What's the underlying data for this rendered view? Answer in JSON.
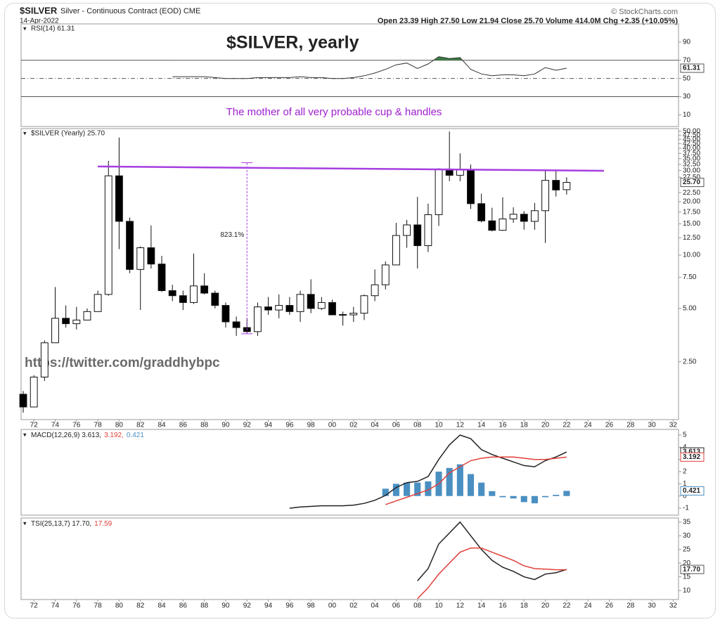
{
  "header": {
    "symbol": "$SILVER",
    "name": "Silver - Continuous Contract (EOD) CME",
    "date": "14-Apr-2022",
    "quote": "Open 23.39  High 27.50  Low 21.94  Close 25.70  Volume 414.0M  Chg +2.35 (+10.05%)",
    "copyright": "© StockCharts.com"
  },
  "chart_data": [
    {
      "type": "rsi",
      "title": "$SILVER, yearly",
      "subtitle": "The mother of all very probable cup & handles",
      "legend": "RSI(14) 61.31",
      "ylim": [
        -2.8,
        110
      ],
      "yticks": [
        10,
        30,
        50,
        70,
        90
      ],
      "levels": [
        70,
        50,
        30
      ],
      "fill_color": "#3a7d44",
      "x": [
        1985,
        1986,
        1987,
        1988,
        1989,
        1990,
        1991,
        1992,
        1993,
        1994,
        1995,
        1996,
        1997,
        1998,
        1999,
        2000,
        2001,
        2002,
        2003,
        2004,
        2005,
        2006,
        2007,
        2008,
        2009,
        2010,
        2011,
        2012,
        2013,
        2014,
        2015,
        2016,
        2017,
        2018,
        2019,
        2020,
        2021,
        2022
      ],
      "series": [
        {
          "color": "#333333",
          "values": [
            52,
            52,
            52,
            52,
            51,
            50,
            50,
            50,
            51,
            51,
            51,
            51,
            52,
            51,
            51,
            50,
            50,
            51,
            53,
            56,
            60,
            65,
            67,
            61,
            66,
            74,
            72,
            73,
            60,
            55,
            53,
            54,
            54,
            53,
            55,
            62,
            59,
            61.31
          ]
        }
      ]
    },
    {
      "type": "candlestick",
      "legend": "$SILVER (Yearly) 25.70",
      "log_scale": true,
      "last_label": "25.70",
      "ylim": [
        1.18,
        51.7
      ],
      "xlim": [
        1970.8,
        2032.5
      ],
      "yticks": [
        {
          "value": 2.5,
          "label": "2.50"
        },
        {
          "value": 5,
          "label": "5.00"
        },
        {
          "value": 7.5,
          "label": "7.50"
        },
        {
          "value": 10,
          "label": "10.00"
        },
        {
          "value": 12.5,
          "label": "12.50"
        },
        {
          "value": 15,
          "label": "15.00"
        },
        {
          "value": 17.5,
          "label": "17.50"
        },
        {
          "value": 20,
          "label": "20.00"
        },
        {
          "value": 22.5,
          "label": "22.50"
        },
        {
          "value": 27.5,
          "label": "27.50"
        },
        {
          "value": 30,
          "label": "30.00"
        },
        {
          "value": 32.5,
          "label": "32.50"
        },
        {
          "value": 35,
          "label": "35.00"
        },
        {
          "value": 37.5,
          "label": "37.50"
        },
        {
          "value": 40,
          "label": "40.00"
        },
        {
          "value": 42.5,
          "label": "42.50"
        },
        {
          "value": 45,
          "label": "45.00"
        },
        {
          "value": 47.5,
          "label": "47.50"
        },
        {
          "value": 50,
          "label": "50.00"
        }
      ],
      "xticks": [
        {
          "value": 1972,
          "label": "72"
        },
        {
          "value": 1974,
          "label": "74"
        },
        {
          "value": 1976,
          "label": "76"
        },
        {
          "value": 1978,
          "label": "78"
        },
        {
          "value": 1980,
          "label": "80"
        },
        {
          "value": 1982,
          "label": "82"
        },
        {
          "value": 1984,
          "label": "84"
        },
        {
          "value": 1986,
          "label": "86"
        },
        {
          "value": 1988,
          "label": "88"
        },
        {
          "value": 1990,
          "label": "90"
        },
        {
          "value": 1992,
          "label": "92"
        },
        {
          "value": 1994,
          "label": "94"
        },
        {
          "value": 1996,
          "label": "96"
        },
        {
          "value": 1998,
          "label": "98"
        },
        {
          "value": 2000,
          "label": "00"
        },
        {
          "value": 2002,
          "label": "02"
        },
        {
          "value": 2004,
          "label": "04"
        },
        {
          "value": 2006,
          "label": "06"
        },
        {
          "value": 2008,
          "label": "08"
        },
        {
          "value": 2010,
          "label": "10"
        },
        {
          "value": 2012,
          "label": "12"
        },
        {
          "value": 2014,
          "label": "14"
        },
        {
          "value": 2016,
          "label": "16"
        },
        {
          "value": 2018,
          "label": "18"
        },
        {
          "value": 2020,
          "label": "20"
        },
        {
          "value": 2022,
          "label": "22"
        },
        {
          "value": 2024,
          "label": "24"
        },
        {
          "value": 2026,
          "label": "26"
        },
        {
          "value": 2028,
          "label": "28"
        },
        {
          "value": 2030,
          "label": "30"
        },
        {
          "value": 2032,
          "label": "32"
        }
      ],
      "x": [
        1971,
        1972,
        1973,
        1974,
        1975,
        1976,
        1977,
        1978,
        1979,
        1980,
        1981,
        1982,
        1983,
        1984,
        1985,
        1986,
        1987,
        1988,
        1989,
        1990,
        1991,
        1992,
        1993,
        1994,
        1995,
        1996,
        1997,
        1998,
        1999,
        2000,
        2001,
        2002,
        2003,
        2004,
        2005,
        2006,
        2007,
        2008,
        2009,
        2010,
        2011,
        2012,
        2013,
        2014,
        2015,
        2016,
        2017,
        2018,
        2019,
        2020,
        2021,
        2022
      ],
      "open": [
        1.64,
        1.39,
        2.05,
        3.2,
        4.4,
        4.1,
        4.3,
        4.8,
        6.0,
        28,
        15.5,
        8.3,
        11,
        8.9,
        6.3,
        5.9,
        5.4,
        6.7,
        6.1,
        5.2,
        4.2,
        3.9,
        3.7,
        5.1,
        4.9,
        5.2,
        4.8,
        6.0,
        5.0,
        5.4,
        4.62,
        4.6,
        4.7,
        5.9,
        6.8,
        8.8,
        12.9,
        14.8,
        11.3,
        16.9,
        30.6,
        28.2,
        30.3,
        19.5,
        15.6,
        13.8,
        16.0,
        17.0,
        15.5,
        17.8,
        26.4,
        23.39
      ],
      "high": [
        1.71,
        2.1,
        3.3,
        6.6,
        5.2,
        5.1,
        5.0,
        6.3,
        34,
        46,
        16.3,
        11.2,
        14.7,
        9.9,
        6.8,
        6.3,
        10.2,
        7.9,
        6.3,
        5.4,
        4.5,
        4.4,
        5.4,
        5.8,
        6.0,
        5.8,
        6.3,
        7.3,
        5.8,
        5.6,
        4.8,
        5.1,
        6.0,
        8.3,
        9.2,
        15.2,
        15.8,
        21.3,
        19.5,
        30.9,
        49.8,
        37.5,
        32.4,
        22.2,
        18.5,
        21.2,
        18.6,
        17.7,
        19.7,
        29.8,
        30.1,
        27.5
      ],
      "low": [
        1.29,
        1.39,
        1.95,
        3.2,
        3.9,
        3.8,
        4.3,
        4.8,
        5.9,
        10.8,
        7.9,
        4.9,
        8.4,
        6.2,
        5.5,
        4.9,
        5.3,
        6.0,
        5.0,
        3.9,
        3.5,
        3.6,
        3.5,
        4.6,
        4.4,
        4.6,
        4.2,
        4.7,
        4.9,
        4.6,
        4.0,
        4.2,
        4.3,
        5.5,
        6.4,
        8.8,
        11.0,
        8.4,
        10.4,
        14.6,
        26.1,
        26.1,
        18.2,
        15.3,
        13.6,
        13.7,
        15.2,
        13.9,
        13.9,
        11.7,
        21.4,
        21.94
      ],
      "close": [
        1.39,
        2.05,
        3.2,
        4.4,
        4.1,
        4.3,
        4.8,
        6.0,
        28,
        15.5,
        8.3,
        11,
        8.9,
        6.3,
        5.9,
        5.4,
        6.7,
        6.1,
        5.2,
        4.2,
        3.9,
        3.7,
        5.1,
        4.9,
        5.2,
        4.8,
        6.0,
        5.0,
        5.4,
        4.6,
        4.58,
        4.7,
        5.9,
        6.8,
        8.8,
        12.9,
        14.8,
        11.3,
        16.9,
        30.6,
        28.2,
        30.3,
        19.5,
        15.6,
        13.8,
        16.0,
        17.0,
        15.5,
        17.8,
        26.4,
        23.3,
        25.7
      ],
      "trendline": {
        "color": "#a63ee0",
        "x": [
          1978,
          2025.5
        ],
        "y": [
          31.6,
          29.9
        ]
      },
      "measure": {
        "color": "#a63ee0",
        "x": 1992,
        "y": [
          3.6,
          33.2
        ],
        "label": "823.1%"
      },
      "watermark": "https://twitter.com/graddhybpc"
    },
    {
      "type": "macd",
      "legend": [
        "MACD(12,26,9) 3.613,",
        "3.192,",
        "0.421"
      ],
      "ylim": [
        -1.57,
        5.46
      ],
      "yticks": [
        5,
        4,
        3,
        2,
        1,
        0,
        -1
      ],
      "series": [
        {
          "color": "#222222",
          "x": [
            1996,
            1997,
            1998,
            1999,
            2000,
            2001,
            2002,
            2003,
            2004,
            2005,
            2006,
            2007,
            2008,
            2009,
            2010,
            2011,
            2012,
            2013,
            2014,
            2015,
            2016,
            2017,
            2018,
            2019,
            2020,
            2021,
            2022
          ],
          "values": [
            -1.0,
            -0.9,
            -0.85,
            -0.8,
            -0.8,
            -0.8,
            -0.75,
            -0.6,
            -0.35,
            0.05,
            0.7,
            1.1,
            1.2,
            1.6,
            3.0,
            4.2,
            5.0,
            4.7,
            3.8,
            3.4,
            3.1,
            2.8,
            2.5,
            2.4,
            2.9,
            3.2,
            3.613
          ]
        },
        {
          "color": "#e0403a",
          "x": [
            2005,
            2006,
            2007,
            2008,
            2009,
            2010,
            2011,
            2012,
            2013,
            2014,
            2015,
            2016,
            2017,
            2018,
            2019,
            2020,
            2021,
            2022
          ],
          "values": [
            -0.7,
            -0.4,
            -0.1,
            0.2,
            0.5,
            1.0,
            1.9,
            2.4,
            2.9,
            3.1,
            3.2,
            3.2,
            3.2,
            3.1,
            3.0,
            3.0,
            3.1,
            3.192
          ]
        }
      ],
      "histogram": {
        "color": "#4a8fc2",
        "x": [
          2005,
          2006,
          2007,
          2008,
          2009,
          2010,
          2011,
          2012,
          2013,
          2014,
          2015,
          2016,
          2017,
          2018,
          2019,
          2020,
          2021,
          2022
        ],
        "values": [
          0.6,
          1.0,
          1.1,
          1.1,
          1.2,
          2.0,
          2.3,
          2.6,
          1.8,
          1.1,
          0.4,
          -0.1,
          -0.2,
          -0.5,
          -0.6,
          -0.1,
          0.1,
          0.421
        ]
      }
    },
    {
      "type": "tsi",
      "legend": [
        "TSI(25,13,7) 17.70,",
        "17.59"
      ],
      "last_label": "17.70",
      "ylim": [
        6.7,
        36.5
      ],
      "yticks": [
        10,
        15,
        20,
        25,
        30,
        35
      ],
      "xticks": [
        {
          "value": 1972,
          "label": "72"
        },
        {
          "value": 1974,
          "label": "74"
        },
        {
          "value": 1976,
          "label": "76"
        },
        {
          "value": 1978,
          "label": "78"
        },
        {
          "value": 1980,
          "label": "80"
        },
        {
          "value": 1982,
          "label": "82"
        },
        {
          "value": 1984,
          "label": "84"
        },
        {
          "value": 1986,
          "label": "86"
        },
        {
          "value": 1988,
          "label": "88"
        },
        {
          "value": 1990,
          "label": "90"
        },
        {
          "value": 1992,
          "label": "92"
        },
        {
          "value": 1994,
          "label": "94"
        },
        {
          "value": 1996,
          "label": "96"
        },
        {
          "value": 1998,
          "label": "98"
        },
        {
          "value": 2000,
          "label": "00"
        },
        {
          "value": 2002,
          "label": "02"
        },
        {
          "value": 2004,
          "label": "04"
        },
        {
          "value": 2006,
          "label": "06"
        },
        {
          "value": 2008,
          "label": "08"
        },
        {
          "value": 2010,
          "label": "10"
        },
        {
          "value": 2012,
          "label": "12"
        },
        {
          "value": 2014,
          "label": "14"
        },
        {
          "value": 2016,
          "label": "16"
        },
        {
          "value": 2018,
          "label": "18"
        },
        {
          "value": 2020,
          "label": "20"
        },
        {
          "value": 2022,
          "label": "22"
        },
        {
          "value": 2024,
          "label": "24"
        },
        {
          "value": 2026,
          "label": "26"
        },
        {
          "value": 2028,
          "label": "28"
        },
        {
          "value": 2030,
          "label": "30"
        },
        {
          "value": 2032,
          "label": "32"
        }
      ],
      "series": [
        {
          "color": "#222222",
          "x": [
            2008,
            2009,
            2010,
            2011,
            2012,
            2013,
            2014,
            2015,
            2016,
            2017,
            2018,
            2019,
            2020,
            2021,
            2022
          ],
          "values": [
            13.5,
            18,
            27,
            31,
            35,
            30,
            25,
            21,
            18.5,
            17,
            15,
            14,
            16,
            16.5,
            17.7
          ]
        },
        {
          "color": "#e0403a",
          "x": [
            2008,
            2009,
            2010,
            2011,
            2012,
            2013,
            2014,
            2015,
            2016,
            2017,
            2018,
            2019,
            2020,
            2021,
            2022
          ],
          "values": [
            7,
            11,
            16,
            20,
            24,
            25.5,
            25.5,
            24,
            22.5,
            21,
            19,
            18,
            17.8,
            17.6,
            17.59
          ]
        }
      ]
    }
  ]
}
